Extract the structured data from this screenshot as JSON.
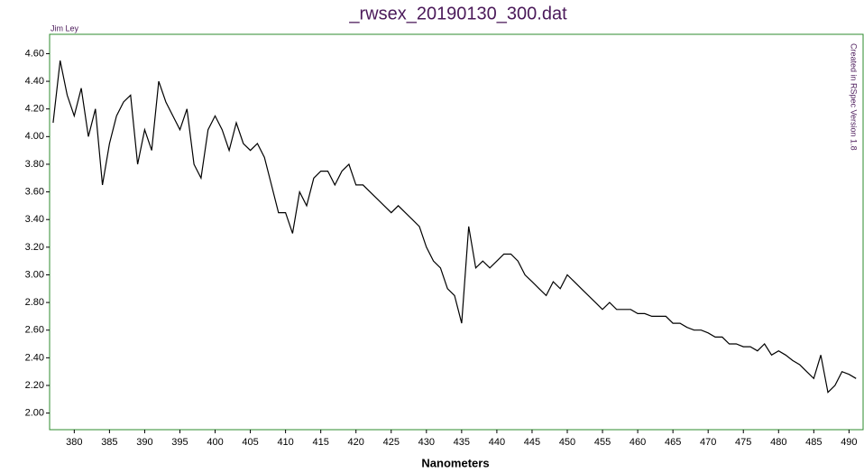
{
  "chart_data": {
    "type": "line",
    "title": "_rwsex_20190130_300.dat",
    "x_label": "Nanometers",
    "annotations": [
      "Jim Ley",
      "Created in RSpec Version 1.8"
    ],
    "xlim": [
      376.5,
      492
    ],
    "ylim": [
      1.88,
      4.74
    ],
    "xticks": [
      380,
      385,
      390,
      395,
      400,
      405,
      410,
      415,
      420,
      425,
      430,
      435,
      440,
      445,
      450,
      455,
      460,
      465,
      470,
      475,
      480,
      485,
      490
    ],
    "yticks": [
      {
        "value": 2.0,
        "label": "2.00"
      },
      {
        "value": 2.2,
        "label": "2.20"
      },
      {
        "value": 2.4,
        "label": "2.40"
      },
      {
        "value": 2.6,
        "label": "2.60"
      },
      {
        "value": 2.8,
        "label": "2.80"
      },
      {
        "value": 3.0,
        "label": "3.00"
      },
      {
        "value": 3.2,
        "label": "3.20"
      },
      {
        "value": 3.4,
        "label": "3.40"
      },
      {
        "value": 3.6,
        "label": "3.60"
      },
      {
        "value": 3.8,
        "label": "3.80"
      },
      {
        "value": 4.0,
        "label": "4.00"
      },
      {
        "value": 4.2,
        "label": "4.20"
      },
      {
        "value": 4.4,
        "label": "4.40"
      },
      {
        "value": 4.6,
        "label": "4.60"
      }
    ],
    "color": "#000000",
    "frame_color": "#2e8b2e",
    "x": [
      377,
      378,
      379,
      380,
      381,
      382,
      383,
      384,
      385,
      386,
      387,
      388,
      389,
      390,
      391,
      392,
      393,
      394,
      395,
      396,
      397,
      398,
      399,
      400,
      401,
      402,
      403,
      404,
      405,
      406,
      407,
      408,
      409,
      410,
      411,
      412,
      413,
      414,
      415,
      416,
      417,
      418,
      419,
      420,
      421,
      422,
      423,
      424,
      425,
      426,
      427,
      428,
      429,
      430,
      431,
      432,
      433,
      434,
      435,
      436,
      437,
      438,
      439,
      440,
      441,
      442,
      443,
      444,
      445,
      446,
      447,
      448,
      449,
      450,
      451,
      452,
      453,
      454,
      455,
      456,
      457,
      458,
      459,
      460,
      461,
      462,
      463,
      464,
      465,
      466,
      467,
      468,
      469,
      470,
      471,
      472,
      473,
      474,
      475,
      476,
      477,
      478,
      479,
      480,
      481,
      482,
      483,
      484,
      485,
      486,
      487,
      488,
      489,
      490,
      491
    ],
    "values": [
      4.1,
      4.55,
      4.3,
      4.15,
      4.35,
      4.0,
      4.2,
      3.65,
      3.95,
      4.15,
      4.25,
      4.3,
      3.8,
      4.05,
      3.9,
      4.4,
      4.25,
      4.15,
      4.05,
      4.2,
      3.8,
      3.7,
      4.05,
      4.15,
      4.05,
      3.9,
      4.1,
      3.95,
      3.9,
      3.95,
      3.85,
      3.65,
      3.45,
      3.45,
      3.3,
      3.6,
      3.5,
      3.7,
      3.75,
      3.75,
      3.65,
      3.75,
      3.8,
      3.65,
      3.65,
      3.6,
      3.55,
      3.5,
      3.45,
      3.5,
      3.45,
      3.4,
      3.35,
      3.2,
      3.1,
      3.05,
      2.9,
      2.85,
      2.65,
      3.35,
      3.05,
      3.1,
      3.05,
      3.1,
      3.15,
      3.15,
      3.1,
      3.0,
      2.95,
      2.9,
      2.85,
      2.95,
      2.9,
      3.0,
      2.95,
      2.9,
      2.85,
      2.8,
      2.75,
      2.8,
      2.75,
      2.75,
      2.75,
      2.72,
      2.72,
      2.7,
      2.7,
      2.7,
      2.65,
      2.65,
      2.62,
      2.6,
      2.6,
      2.58,
      2.55,
      2.55,
      2.5,
      2.5,
      2.48,
      2.48,
      2.45,
      2.5,
      2.42,
      2.45,
      2.42,
      2.38,
      2.35,
      2.3,
      2.25,
      2.42,
      2.15,
      2.2,
      2.3,
      2.28,
      2.25
    ]
  }
}
